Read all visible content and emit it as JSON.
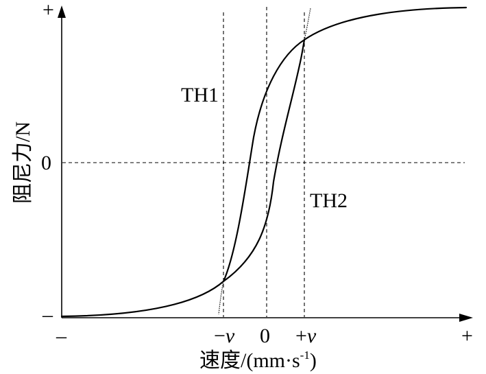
{
  "axes": {
    "y_axis_label": "阻尼力/N",
    "x_axis_label": "速度/(mm·s",
    "x_axis_label_superscript": "-1",
    "x_axis_label_close": ")",
    "y_top_tick": "+",
    "y_zero_tick": "0",
    "y_bottom_tick": "–",
    "x_left_tick": "–",
    "x_neg_v_sign": "−",
    "x_neg_v_var": "v",
    "x_zero_tick": "0",
    "x_pos_v_sign": "+",
    "x_pos_v_var": "v",
    "x_right_tick": "+"
  },
  "curves": {
    "upper_label": "TH1",
    "lower_label": "TH2"
  },
  "colors": {
    "ink": "#000000",
    "background": "#ffffff"
  }
}
